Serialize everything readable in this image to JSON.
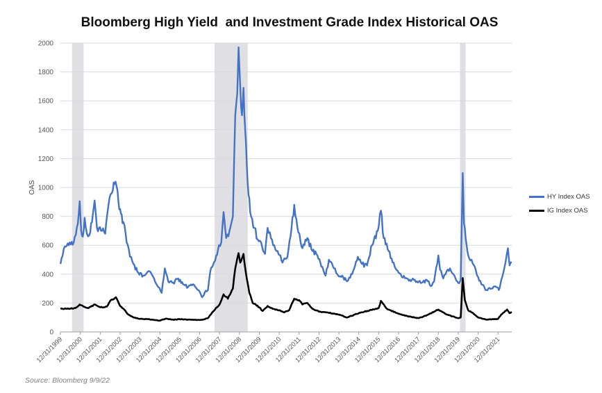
{
  "chart_data": {
    "type": "line",
    "title": "Bloomberg High Yield  and Investment Grade Index Historical OAS",
    "xlabel": "",
    "ylabel": "OAS",
    "source": "Source: Bloomberg 9/9/22",
    "ylim": [
      0,
      2000
    ],
    "yticks": [
      0,
      200,
      400,
      600,
      800,
      1000,
      1200,
      1400,
      1600,
      1800,
      2000
    ],
    "xlim": [
      "1999-12-31",
      "2022-09-09"
    ],
    "xtick_labels": [
      "12/31/1999",
      "12/31/2000",
      "12/31/2001",
      "12/31/2002",
      "12/31/2003",
      "12/31/2004",
      "12/31/2005",
      "12/31/2006",
      "12/31/2007",
      "12/31/2008",
      "12/31/2009",
      "12/31/2010",
      "12/31/2011",
      "12/31/2012",
      "12/31/2013",
      "12/31/2014",
      "12/31/2015",
      "12/31/2016",
      "12/31/2017",
      "12/31/2018",
      "12/31/2019",
      "12/31/2020",
      "12/31/2021"
    ],
    "grid": true,
    "legend_position": "right",
    "shaded_periods": [
      {
        "start": "2000-08-01",
        "end": "2001-03-01"
      },
      {
        "start": "2007-10-01",
        "end": "2009-06-01"
      },
      {
        "start": "2020-02-01",
        "end": "2020-05-15"
      }
    ],
    "series": [
      {
        "name": "HY Index OAS",
        "color": "#4472c4",
        "points": [
          [
            "2000-01-01",
            470
          ],
          [
            "2000-03-01",
            575
          ],
          [
            "2000-06-01",
            600
          ],
          [
            "2000-09-01",
            620
          ],
          [
            "2000-11-15",
            750
          ],
          [
            "2000-12-20",
            905
          ],
          [
            "2001-01-15",
            700
          ],
          [
            "2001-02-15",
            660
          ],
          [
            "2001-03-20",
            790
          ],
          [
            "2001-05-01",
            680
          ],
          [
            "2001-07-01",
            690
          ],
          [
            "2001-09-20",
            910
          ],
          [
            "2001-11-01",
            720
          ],
          [
            "2002-02-01",
            700
          ],
          [
            "2002-04-01",
            680
          ],
          [
            "2002-06-01",
            880
          ],
          [
            "2002-08-01",
            960
          ],
          [
            "2002-10-10",
            1040
          ],
          [
            "2002-12-01",
            900
          ],
          [
            "2003-01-15",
            820
          ],
          [
            "2003-03-01",
            760
          ],
          [
            "2003-05-01",
            620
          ],
          [
            "2003-07-01",
            520
          ],
          [
            "2003-09-01",
            470
          ],
          [
            "2003-12-01",
            410
          ],
          [
            "2004-03-01",
            390
          ],
          [
            "2004-06-01",
            420
          ],
          [
            "2004-09-01",
            380
          ],
          [
            "2004-12-01",
            310
          ],
          [
            "2005-02-01",
            270
          ],
          [
            "2005-04-01",
            440
          ],
          [
            "2005-06-01",
            350
          ],
          [
            "2005-09-01",
            340
          ],
          [
            "2005-12-01",
            370
          ],
          [
            "2006-03-01",
            330
          ],
          [
            "2006-06-01",
            310
          ],
          [
            "2006-09-01",
            330
          ],
          [
            "2006-12-01",
            290
          ],
          [
            "2007-02-15",
            240
          ],
          [
            "2007-04-01",
            270
          ],
          [
            "2007-06-01",
            290
          ],
          [
            "2007-07-15",
            420
          ],
          [
            "2007-09-01",
            460
          ],
          [
            "2007-11-01",
            530
          ],
          [
            "2007-12-20",
            600
          ],
          [
            "2008-02-01",
            620
          ],
          [
            "2008-03-15",
            830
          ],
          [
            "2008-05-01",
            650
          ],
          [
            "2008-07-01",
            700
          ],
          [
            "2008-09-01",
            800
          ],
          [
            "2008-10-15",
            1500
          ],
          [
            "2008-11-20",
            1650
          ],
          [
            "2008-12-15",
            1970
          ],
          [
            "2009-01-15",
            1700
          ],
          [
            "2009-02-15",
            1500
          ],
          [
            "2009-03-15",
            1690
          ],
          [
            "2009-04-15",
            1400
          ],
          [
            "2009-05-15",
            1150
          ],
          [
            "2009-06-15",
            950
          ],
          [
            "2009-08-01",
            800
          ],
          [
            "2009-10-01",
            720
          ],
          [
            "2009-12-01",
            640
          ],
          [
            "2010-02-01",
            620
          ],
          [
            "2010-04-15",
            540
          ],
          [
            "2010-06-01",
            720
          ],
          [
            "2010-08-01",
            650
          ],
          [
            "2010-10-01",
            600
          ],
          [
            "2010-12-01",
            560
          ],
          [
            "2011-03-01",
            480
          ],
          [
            "2011-06-01",
            520
          ],
          [
            "2011-08-15",
            720
          ],
          [
            "2011-10-04",
            880
          ],
          [
            "2011-12-01",
            720
          ],
          [
            "2012-03-01",
            580
          ],
          [
            "2012-06-01",
            650
          ],
          [
            "2012-09-01",
            560
          ],
          [
            "2012-12-01",
            530
          ],
          [
            "2013-03-01",
            450
          ],
          [
            "2013-05-01",
            390
          ],
          [
            "2013-07-01",
            500
          ],
          [
            "2013-10-01",
            440
          ],
          [
            "2013-12-01",
            400
          ],
          [
            "2014-03-01",
            390
          ],
          [
            "2014-06-01",
            350
          ],
          [
            "2014-09-01",
            400
          ],
          [
            "2014-12-15",
            520
          ],
          [
            "2015-03-01",
            470
          ],
          [
            "2015-06-01",
            460
          ],
          [
            "2015-09-01",
            600
          ],
          [
            "2015-12-15",
            700
          ],
          [
            "2016-02-11",
            840
          ],
          [
            "2016-04-01",
            650
          ],
          [
            "2016-07-01",
            560
          ],
          [
            "2016-10-01",
            480
          ],
          [
            "2016-12-31",
            410
          ],
          [
            "2017-03-01",
            380
          ],
          [
            "2017-06-01",
            370
          ],
          [
            "2017-09-01",
            360
          ],
          [
            "2017-12-01",
            350
          ],
          [
            "2018-03-01",
            340
          ],
          [
            "2018-06-01",
            360
          ],
          [
            "2018-09-01",
            320
          ],
          [
            "2018-10-15",
            350
          ],
          [
            "2018-12-31",
            530
          ],
          [
            "2019-02-01",
            430
          ],
          [
            "2019-04-01",
            370
          ],
          [
            "2019-06-01",
            420
          ],
          [
            "2019-08-01",
            440
          ],
          [
            "2019-10-01",
            400
          ],
          [
            "2019-12-31",
            340
          ],
          [
            "2020-02-15",
            360
          ],
          [
            "2020-03-23",
            1100
          ],
          [
            "2020-04-15",
            750
          ],
          [
            "2020-05-15",
            650
          ],
          [
            "2020-07-01",
            530
          ],
          [
            "2020-09-01",
            500
          ],
          [
            "2020-11-01",
            450
          ],
          [
            "2020-12-31",
            380
          ],
          [
            "2021-03-01",
            330
          ],
          [
            "2021-06-01",
            290
          ],
          [
            "2021-09-01",
            300
          ],
          [
            "2021-12-01",
            310
          ],
          [
            "2022-01-15",
            290
          ],
          [
            "2022-03-01",
            360
          ],
          [
            "2022-05-01",
            450
          ],
          [
            "2022-07-01",
            580
          ],
          [
            "2022-08-01",
            460
          ],
          [
            "2022-09-09",
            480
          ]
        ]
      },
      {
        "name": "IG Index OAS",
        "color": "#000000",
        "points": [
          [
            "2000-01-01",
            160
          ],
          [
            "2000-06-01",
            160
          ],
          [
            "2000-10-01",
            165
          ],
          [
            "2000-12-20",
            190
          ],
          [
            "2001-03-01",
            175
          ],
          [
            "2001-06-01",
            165
          ],
          [
            "2001-09-20",
            190
          ],
          [
            "2002-01-01",
            170
          ],
          [
            "2002-05-01",
            175
          ],
          [
            "2002-07-15",
            220
          ],
          [
            "2002-10-15",
            240
          ],
          [
            "2002-12-31",
            180
          ],
          [
            "2003-03-01",
            160
          ],
          [
            "2003-06-01",
            120
          ],
          [
            "2003-09-01",
            100
          ],
          [
            "2003-12-31",
            90
          ],
          [
            "2004-06-01",
            88
          ],
          [
            "2004-12-31",
            78
          ],
          [
            "2005-04-15",
            92
          ],
          [
            "2005-09-01",
            85
          ],
          [
            "2005-12-31",
            88
          ],
          [
            "2006-06-01",
            85
          ],
          [
            "2006-12-31",
            82
          ],
          [
            "2007-03-01",
            85
          ],
          [
            "2007-06-01",
            95
          ],
          [
            "2007-09-01",
            140
          ],
          [
            "2007-12-31",
            190
          ],
          [
            "2008-03-15",
            260
          ],
          [
            "2008-06-01",
            230
          ],
          [
            "2008-09-01",
            300
          ],
          [
            "2008-10-15",
            440
          ],
          [
            "2008-12-15",
            545
          ],
          [
            "2009-01-15",
            480
          ],
          [
            "2009-02-15",
            510
          ],
          [
            "2009-03-15",
            540
          ],
          [
            "2009-05-01",
            400
          ],
          [
            "2009-07-01",
            270
          ],
          [
            "2009-09-01",
            200
          ],
          [
            "2009-12-31",
            170
          ],
          [
            "2010-03-01",
            145
          ],
          [
            "2010-06-01",
            180
          ],
          [
            "2010-09-01",
            160
          ],
          [
            "2010-12-31",
            150
          ],
          [
            "2011-04-01",
            135
          ],
          [
            "2011-07-01",
            150
          ],
          [
            "2011-10-04",
            230
          ],
          [
            "2011-12-31",
            220
          ],
          [
            "2012-03-01",
            190
          ],
          [
            "2012-06-01",
            200
          ],
          [
            "2012-09-01",
            160
          ],
          [
            "2012-12-31",
            140
          ],
          [
            "2013-06-01",
            135
          ],
          [
            "2013-12-31",
            120
          ],
          [
            "2014-06-01",
            100
          ],
          [
            "2014-12-31",
            130
          ],
          [
            "2015-06-01",
            145
          ],
          [
            "2015-12-31",
            165
          ],
          [
            "2016-02-11",
            215
          ],
          [
            "2016-06-01",
            160
          ],
          [
            "2016-12-31",
            125
          ],
          [
            "2017-06-01",
            110
          ],
          [
            "2017-12-31",
            95
          ],
          [
            "2018-06-01",
            115
          ],
          [
            "2018-12-31",
            155
          ],
          [
            "2019-06-01",
            120
          ],
          [
            "2019-12-31",
            95
          ],
          [
            "2020-02-15",
            100
          ],
          [
            "2020-03-23",
            373
          ],
          [
            "2020-05-01",
            220
          ],
          [
            "2020-07-01",
            150
          ],
          [
            "2020-09-01",
            135
          ],
          [
            "2020-12-31",
            100
          ],
          [
            "2021-06-01",
            85
          ],
          [
            "2021-12-31",
            90
          ],
          [
            "2022-03-01",
            120
          ],
          [
            "2022-06-15",
            155
          ],
          [
            "2022-08-01",
            130
          ],
          [
            "2022-09-09",
            138
          ]
        ]
      }
    ]
  }
}
